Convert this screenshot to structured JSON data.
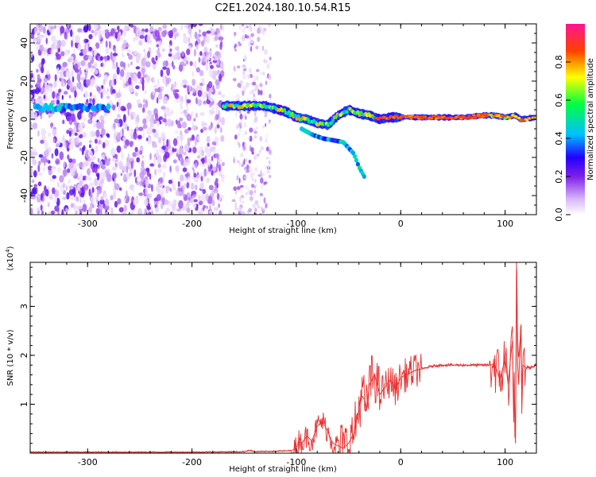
{
  "chart_data": [
    {
      "type": "heatmap",
      "title": "C2E1.2024.180.10.54.R15",
      "xlabel": "Height of straight line (km)",
      "ylabel": "Frequency (Hz)",
      "xlim": [
        -355,
        130
      ],
      "ylim": [
        -50,
        50
      ],
      "xticks": [
        -300,
        -200,
        -100,
        0,
        100
      ],
      "yticks": [
        -40,
        -20,
        0,
        20,
        40
      ],
      "colorbar": {
        "label": "Normalized spectral amplitude",
        "range": [
          0,
          1
        ],
        "ticks": [
          0.0,
          0.2,
          0.4,
          0.6,
          0.8
        ],
        "colormap": [
          "#ffffff",
          "#d9b8f8",
          "#7f1fe8",
          "#2200ff",
          "#00c0ff",
          "#00ff40",
          "#ffff00",
          "#ff4000",
          "#ff1493"
        ]
      },
      "features": {
        "noise_region_x": [
          -355,
          -170
        ],
        "sparse_region_x": [
          -160,
          -125
        ],
        "signal_track": {
          "x": [
            -170,
            -150,
            -130,
            -110,
            -100,
            -90,
            -80,
            -70,
            -60,
            -50,
            -40,
            -30,
            -20,
            -10,
            0,
            20,
            40,
            60,
            80,
            90,
            100,
            110,
            115,
            130
          ],
          "y": [
            7,
            7,
            7,
            4,
            1,
            0,
            -2,
            -3,
            2,
            5,
            3,
            2,
            0,
            1,
            1,
            1,
            1,
            1,
            2,
            2,
            1,
            2,
            0,
            1
          ]
        },
        "branch_track": {
          "x": [
            -95,
            -85,
            -75,
            -55,
            -45,
            -40,
            -35
          ],
          "y": [
            -5,
            -8,
            -10,
            -12,
            -18,
            -25,
            -30
          ]
        },
        "left_band": {
          "x": [
            -350,
            -280
          ],
          "y": 6
        }
      }
    },
    {
      "type": "line",
      "xlabel": "Height of straight line (km)",
      "ylabel": "SNR (10 * v/v)",
      "y_multiplier": "(x10",
      "y_multiplier_exp": "4",
      "y_multiplier_close": ")",
      "xlim": [
        -355,
        130
      ],
      "ylim": [
        0,
        3.9
      ],
      "xticks": [
        -300,
        -200,
        -100,
        0,
        100
      ],
      "yticks": [
        1,
        2,
        3
      ],
      "color": "#e83030",
      "series": [
        {
          "x": [
            -355,
            -300,
            -250,
            -200,
            -150,
            -145,
            -140,
            -120,
            -105,
            -100,
            -97,
            -95,
            -90,
            -85,
            -80,
            -75,
            -70,
            -65,
            -60,
            -55,
            -50,
            -45,
            -42,
            -40,
            -38,
            -35,
            -33,
            -30,
            -25,
            -20,
            -15,
            -10,
            -5,
            0,
            5,
            10,
            15,
            20,
            30,
            40,
            50,
            60,
            70,
            80,
            85,
            90,
            95,
            98,
            100,
            103,
            105,
            107,
            108,
            109,
            110,
            111,
            112,
            113,
            115,
            116,
            117,
            120,
            125,
            130
          ],
          "y": [
            0.02,
            0.02,
            0.02,
            0.02,
            0.03,
            0.06,
            0.03,
            0.04,
            0.05,
            0.1,
            0.3,
            0.2,
            0.35,
            0.25,
            0.55,
            0.65,
            0.45,
            0.2,
            0.15,
            0.1,
            0.2,
            0.4,
            0.7,
            0.9,
            1.2,
            1.1,
            0.85,
            1.4,
            1.6,
            1.2,
            1.35,
            1.5,
            1.3,
            1.55,
            1.6,
            1.65,
            1.7,
            1.72,
            1.78,
            1.8,
            1.8,
            1.8,
            1.8,
            1.8,
            1.8,
            1.82,
            1.5,
            1.75,
            1.95,
            1.4,
            1.9,
            2.3,
            1.2,
            1.1,
            0.2,
            3.9,
            1.8,
            1.4,
            2.6,
            1.3,
            1.8,
            1.75,
            1.75,
            1.8
          ]
        }
      ]
    }
  ]
}
